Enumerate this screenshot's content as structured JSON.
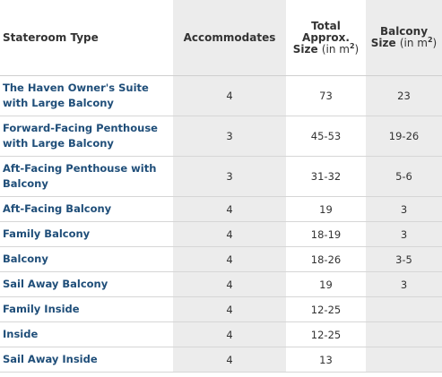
{
  "headers": {
    "stateroom_type": "Stateroom Type",
    "accommodates": "Accommodates",
    "total_size_bold": "Total Approx. Size",
    "total_size_unit": "(in m",
    "balcony_size_bold": "Balcony Size",
    "balcony_size_unit": "(in m",
    "superscript": "2",
    "close_paren": ")"
  },
  "rows": [
    {
      "type": "The Haven Owner's Suite with Large Balcony",
      "accommodates": "4",
      "total_size": "73",
      "balcony_size": "23"
    },
    {
      "type": "Forward-Facing Penthouse with Large Balcony",
      "accommodates": "3",
      "total_size": "45-53",
      "balcony_size": "19-26"
    },
    {
      "type": "Aft-Facing Penthouse with Balcony",
      "accommodates": "3",
      "total_size": "31-32",
      "balcony_size": "5-6"
    },
    {
      "type": "Aft-Facing Balcony",
      "accommodates": "4",
      "total_size": "19",
      "balcony_size": "3"
    },
    {
      "type": "Family Balcony",
      "accommodates": "4",
      "total_size": "18-19",
      "balcony_size": "3"
    },
    {
      "type": "Balcony",
      "accommodates": "4",
      "total_size": "18-26",
      "balcony_size": "3-5"
    },
    {
      "type": "Sail Away Balcony",
      "accommodates": "4",
      "total_size": "19",
      "balcony_size": "3"
    },
    {
      "type": "Family Inside",
      "accommodates": "4",
      "total_size": "12-25",
      "balcony_size": ""
    },
    {
      "type": "Inside",
      "accommodates": "4",
      "total_size": "12-25",
      "balcony_size": ""
    },
    {
      "type": "Sail Away Inside",
      "accommodates": "4",
      "total_size": "13",
      "balcony_size": ""
    }
  ]
}
